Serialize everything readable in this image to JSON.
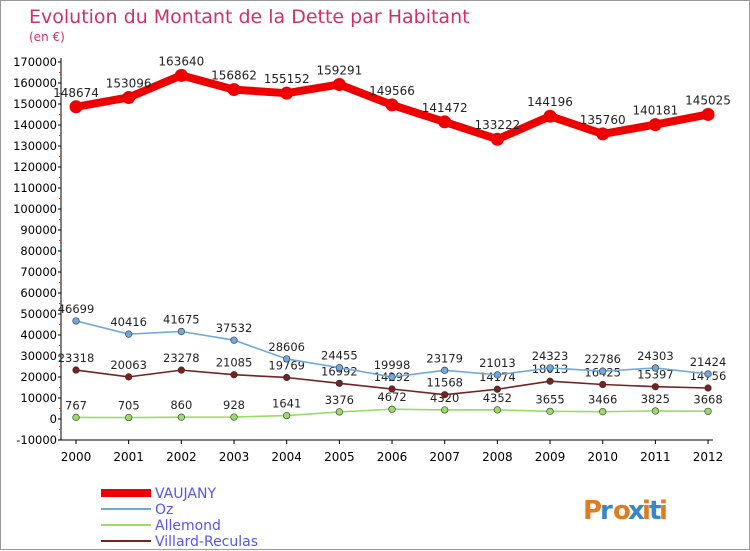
{
  "chart_data": {
    "type": "line",
    "title": "Evolution du Montant de la Dette par Habitant",
    "subtitle": "(en €)",
    "x": [
      "2000",
      "2001",
      "2002",
      "2003",
      "2004",
      "2005",
      "2006",
      "2007",
      "2008",
      "2009",
      "2010",
      "2011",
      "2012"
    ],
    "ylim": [
      -10000,
      170000
    ],
    "yticks": [
      -10000,
      0,
      10000,
      20000,
      30000,
      40000,
      50000,
      60000,
      70000,
      80000,
      90000,
      100000,
      110000,
      120000,
      130000,
      140000,
      150000,
      160000,
      170000
    ],
    "grid": false,
    "legend_position": "bottom-left",
    "series": [
      {
        "name": "VAUJANY",
        "color": "#ee0000",
        "values": [
          148674,
          153096,
          163640,
          156862,
          155152,
          159291,
          149566,
          141472,
          133222,
          144196,
          135760,
          140181,
          145025
        ]
      },
      {
        "name": "Oz",
        "color": "#6fa8dc",
        "values": [
          46699,
          40416,
          41675,
          37532,
          28606,
          24455,
          19998,
          23179,
          21013,
          24323,
          22786,
          24303,
          21424
        ]
      },
      {
        "name": "Allemond",
        "color": "#99dd66",
        "values": [
          767,
          705,
          860,
          928,
          1641,
          3376,
          4672,
          4320,
          4352,
          3655,
          3466,
          3825,
          3668
        ]
      },
      {
        "name": "Villard-Reculas",
        "color": "#772222",
        "values": [
          23318,
          20063,
          23278,
          21085,
          19769,
          16992,
          14292,
          11568,
          14174,
          18013,
          16425,
          15397,
          14756
        ]
      }
    ]
  },
  "colors": {
    "title": "#d0306a",
    "axis": "#000000",
    "legend_text": "#5555ee"
  },
  "logo": {
    "text": "Proxiti"
  }
}
